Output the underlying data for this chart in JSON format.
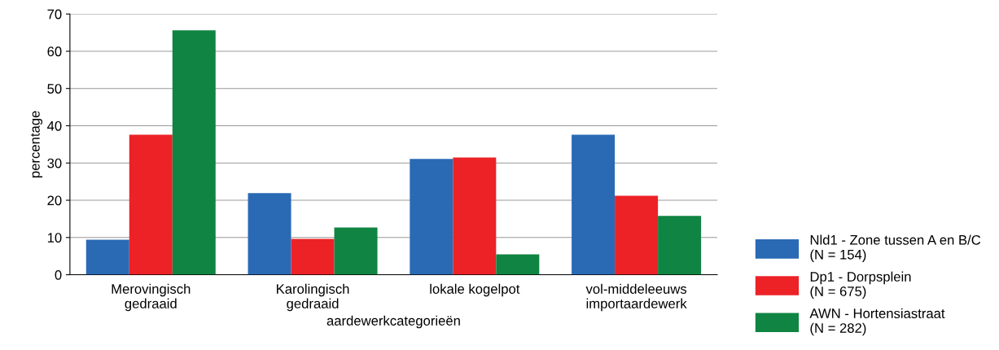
{
  "chart_data": {
    "type": "bar",
    "xlabel": "aardewerkcategorieën",
    "ylabel": "percentage",
    "categories": [
      "Merovingisch\ngedraaid",
      "Karolingisch\ngedraaid",
      "lokale kogelpot",
      "vol-middeleeuws\nimportaardewerk"
    ],
    "series": [
      {
        "name": "Nld1 - Zone tussen A en B/C\n(N = 154)",
        "color": "#2a6ab4",
        "values": [
          9.4,
          21.9,
          31.1,
          37.6
        ]
      },
      {
        "name": "Dp1 - Dorpsplein\n(N = 675)",
        "color": "#ec2227",
        "values": [
          37.6,
          9.6,
          31.5,
          21.2
        ]
      },
      {
        "name": "AWN - Hortensiastraat\n(N = 282)",
        "color": "#108442",
        "values": [
          65.6,
          12.7,
          5.5,
          15.8
        ]
      }
    ],
    "ylim": [
      0,
      70
    ],
    "yticks": [
      0,
      10,
      20,
      30,
      40,
      50,
      60,
      70
    ],
    "grid": "y",
    "legend": "bottom right"
  }
}
